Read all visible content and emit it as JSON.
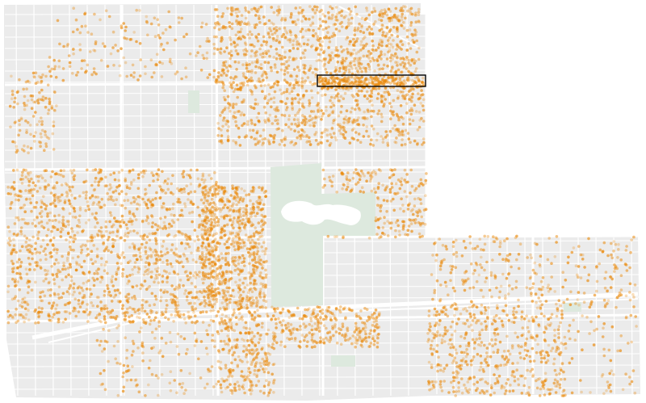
{
  "map": {
    "colors": {
      "background": "#ffffff",
      "land": "#ebebeb",
      "street": "#ffffff",
      "park": "#dde9de",
      "water": "#ffffff",
      "point": "#ea8a0c",
      "highlight_stroke": "#000000"
    },
    "layers": [
      "land",
      "streets",
      "parks",
      "points",
      "highlight"
    ],
    "point_style": "translucent orange dots, dense clusters",
    "highlight": {
      "shape": "rectangle",
      "label": ""
    }
  }
}
